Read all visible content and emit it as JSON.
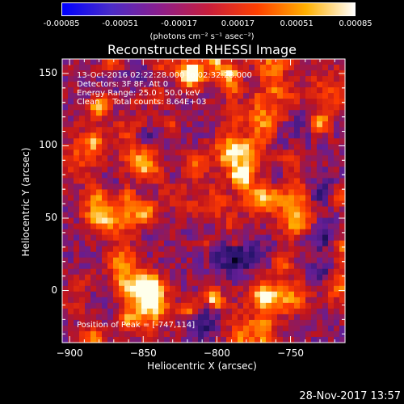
{
  "colorbar": {
    "ticks": [
      "-0.00085",
      "-0.00051",
      "-0.00017",
      "0.00017",
      "0.00051",
      "0.00085"
    ],
    "units": "(photons cm⁻² s⁻¹ asec⁻²)",
    "colors": [
      "#0000ff",
      "#4a2cc8",
      "#8c1e8c",
      "#c81e3c",
      "#ff4000",
      "#ffb000",
      "#ffffff"
    ]
  },
  "annotations": {
    "line1": "13-Oct-2016 02:22:28.000 to 02:32:28.000",
    "line2": "Detectors: 3F 8F, Att 0",
    "line3": "Energy Range: 25.0 - 50.0 keV",
    "line4": "Clean     Total counts: 8.64E+03",
    "peak": "Position of Peak = [-747,114]"
  },
  "footer": "28-Nov-2017 13:57",
  "chart_data": {
    "type": "heatmap",
    "title": "Reconstructed RHESSI Image",
    "xlabel": "Heliocentric X (arcsec)",
    "ylabel": "Heliocentric Y (arcsec)",
    "xlim": [
      -905,
      -713
    ],
    "ylim": [
      -36,
      160
    ],
    "x_ticks": [
      "−900",
      "−850",
      "−800",
      "−750"
    ],
    "x_tick_values": [
      -900,
      -850,
      -800,
      -750
    ],
    "y_ticks": [
      "0",
      "50",
      "100",
      "150"
    ],
    "y_tick_values": [
      0,
      50,
      100,
      150
    ],
    "peak": [
      -747,
      114
    ],
    "value_range": [
      -0.00085,
      0.00085
    ],
    "grid": false
  }
}
